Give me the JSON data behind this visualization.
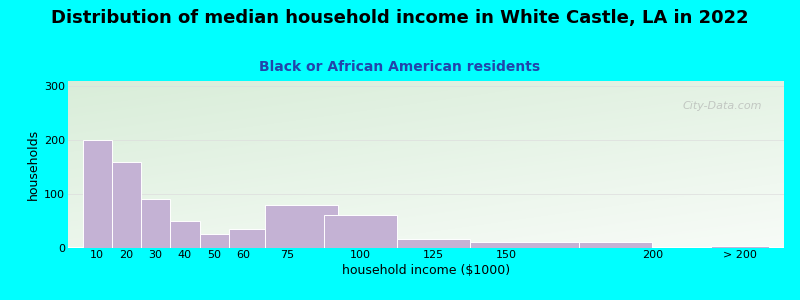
{
  "title": "Distribution of median household income in White Castle, LA in 2022",
  "subtitle": "Black or African American residents",
  "xlabel": "household income ($1000)",
  "ylabel": "households",
  "background_outer": "#00FFFF",
  "bar_color": "#C4B2D4",
  "bar_edge_color": "#FFFFFF",
  "bar_lefts": [
    5,
    15,
    25,
    35,
    45,
    55,
    67.5,
    87.5,
    112.5,
    137.5,
    175,
    220
  ],
  "bar_widths": [
    10,
    10,
    10,
    10,
    10,
    12.5,
    25,
    25,
    25,
    37.5,
    25,
    20
  ],
  "values": [
    200,
    160,
    90,
    50,
    25,
    35,
    80,
    60,
    15,
    10,
    10,
    3
  ],
  "ylim": [
    0,
    310
  ],
  "yticks": [
    0,
    100,
    200,
    300
  ],
  "xtick_positions": [
    10,
    20,
    30,
    40,
    50,
    60,
    75,
    100,
    125,
    150,
    200,
    230
  ],
  "xtick_labels": [
    "10",
    "20",
    "30",
    "40",
    "50",
    "60",
    "75",
    "100",
    "125",
    "150",
    "200",
    "> 200"
  ],
  "xlim": [
    0,
    245
  ],
  "title_fontsize": 13,
  "subtitle_fontsize": 10,
  "axis_label_fontsize": 9,
  "tick_fontsize": 8,
  "watermark": "City-Data.com",
  "grid_color": "#DDDDDD",
  "subtitle_color": "#2244AA"
}
